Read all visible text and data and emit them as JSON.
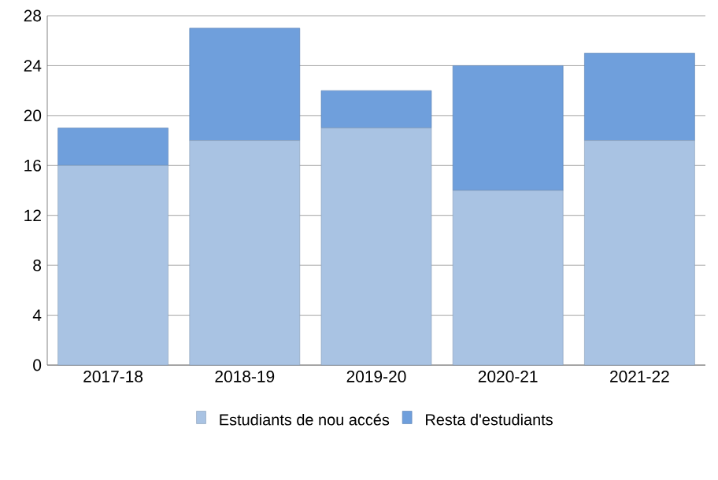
{
  "chart_data": {
    "type": "bar",
    "stacked": true,
    "categories": [
      "2017-18",
      "2018-19",
      "2019-20",
      "2020-21",
      "2021-22"
    ],
    "series": [
      {
        "name": "Estudiants de nou accés",
        "color": "#a9c3e3",
        "values": [
          16,
          18,
          19,
          14,
          18
        ]
      },
      {
        "name": "Resta d'estudiants",
        "color": "#6f9fdc",
        "values": [
          3,
          9,
          3,
          10,
          7
        ]
      }
    ],
    "ylim": [
      0,
      28
    ],
    "yticks": [
      0,
      4,
      8,
      12,
      16,
      20,
      24,
      28
    ],
    "grid": "y",
    "legend": "bottom"
  }
}
